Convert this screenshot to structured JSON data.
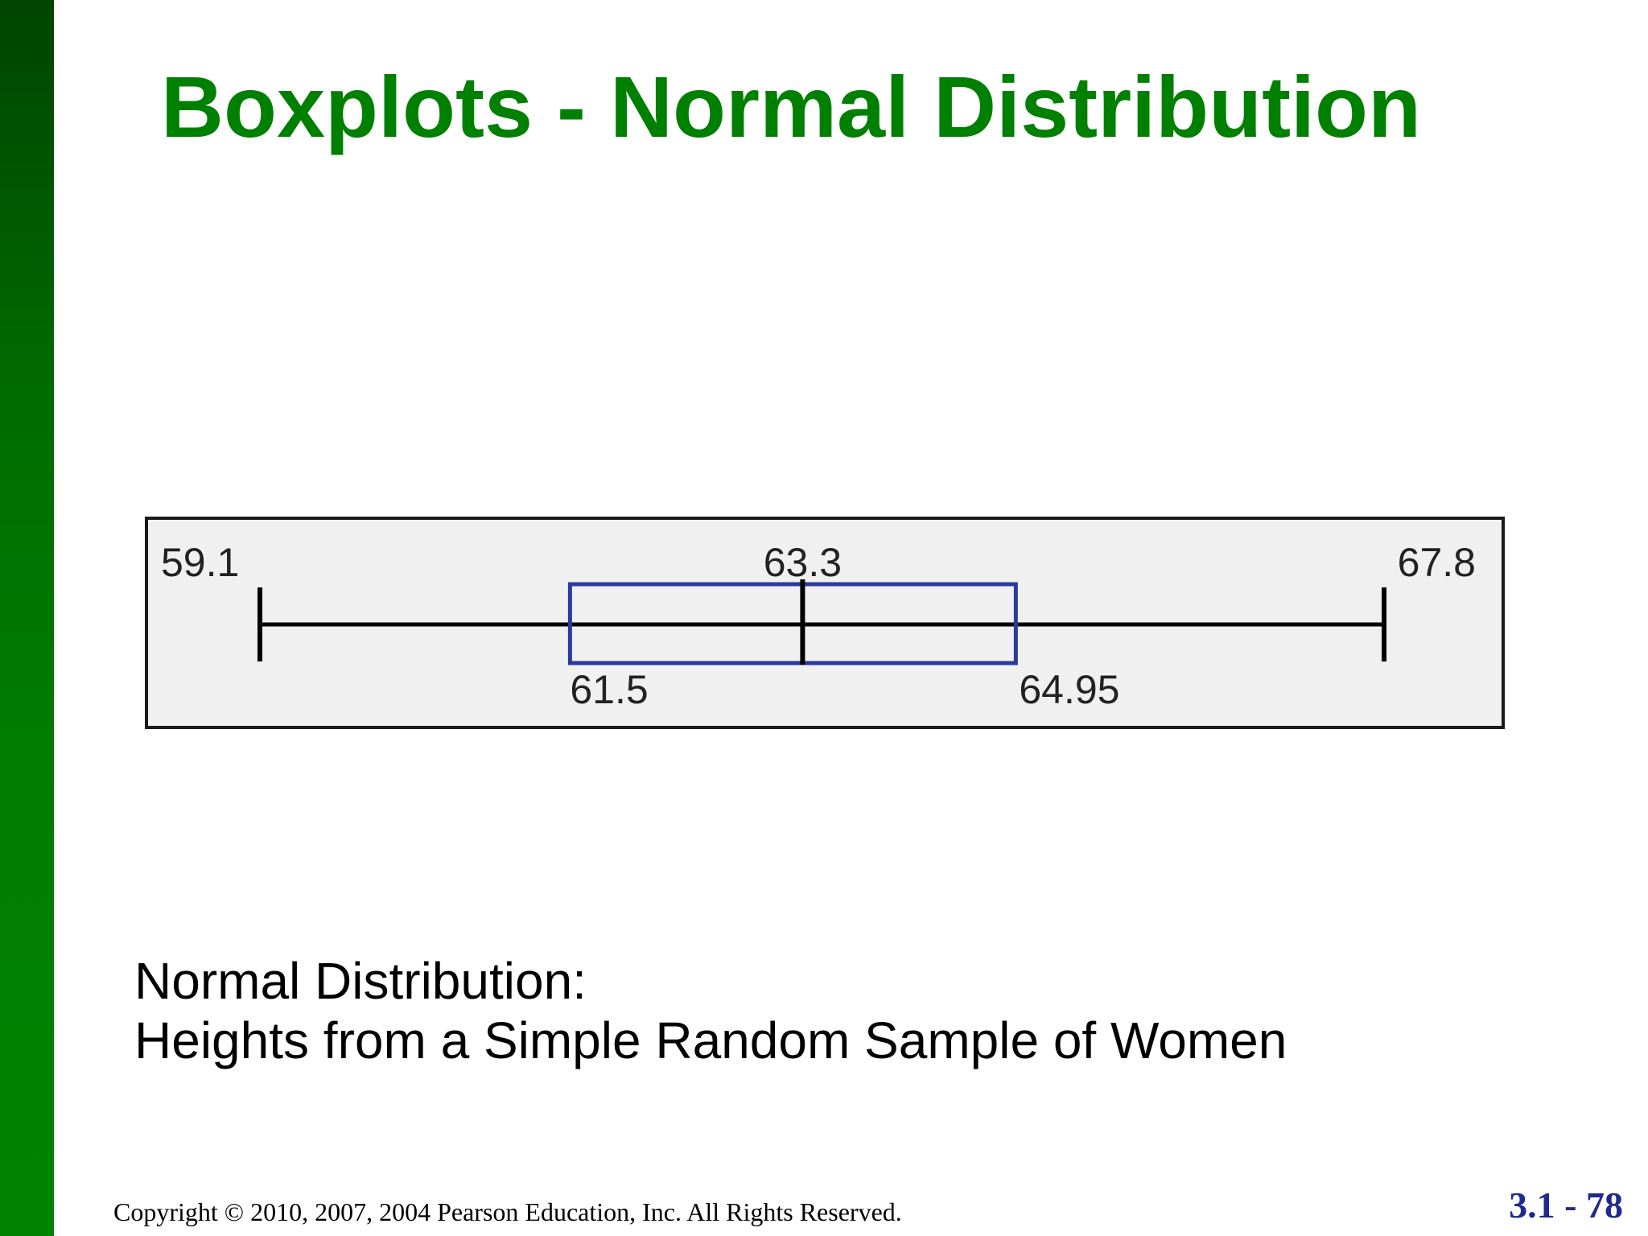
{
  "slide": {
    "title": "Boxplots - Normal Distribution",
    "caption_line1": "Normal Distribution:",
    "caption_line2": "Heights from a Simple Random Sample of Women",
    "copyright": "Copyright © 2010, 2007, 2004 Pearson Education, Inc. All Rights Reserved.",
    "slide_number": "3.1 - 78"
  },
  "colors": {
    "title_green": "#008000",
    "box_blue": "#2b3a9b",
    "slide_number_blue": "#1f2a8c",
    "sidebar_green": "#006a00"
  },
  "chart_data": {
    "type": "boxplot",
    "orientation": "horizontal",
    "min": 59.1,
    "q1": 61.5,
    "median": 63.3,
    "q3": 64.95,
    "max": 67.8,
    "labels": {
      "min": "59.1",
      "q1": "61.5",
      "median": "63.3",
      "q3": "64.95",
      "max": "67.8"
    }
  }
}
